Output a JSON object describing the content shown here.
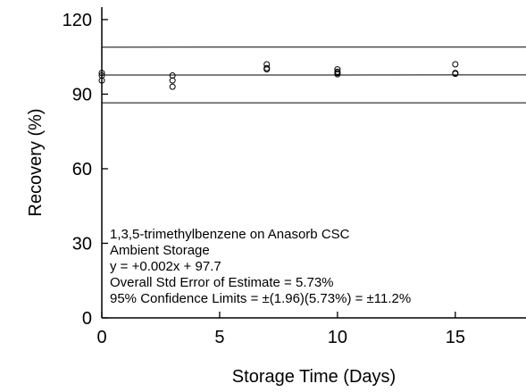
{
  "chart_data": {
    "type": "scatter",
    "xlabel": "Storage Time (Days)",
    "ylabel": "Recovery (%)",
    "xlim": [
      0,
      18
    ],
    "ylim": [
      0,
      125
    ],
    "xticks": [
      0,
      5,
      10,
      15
    ],
    "yticks": [
      0,
      30,
      60,
      90,
      120
    ],
    "xtick_labels": [
      "0",
      "5",
      "10",
      "15"
    ],
    "ytick_labels": [
      "0",
      "30",
      "60",
      "90",
      "120"
    ],
    "grid": false,
    "reference_lines": [
      {
        "label": "upper 95% confidence limit",
        "y_at_x0": 108.9,
        "slope": 0.002
      },
      {
        "label": "regression line",
        "y_at_x0": 97.7,
        "slope": 0.002
      },
      {
        "label": "lower 95% confidence limit",
        "y_at_x0": 86.5,
        "slope": 0.002
      }
    ],
    "series": [
      {
        "marker": "open-circle",
        "points": [
          {
            "x": 0,
            "y": 98.5
          },
          {
            "x": 0,
            "y": 97.5
          },
          {
            "x": 0,
            "y": 95.5
          },
          {
            "x": 3,
            "y": 97.5
          },
          {
            "x": 3,
            "y": 95.5
          },
          {
            "x": 3,
            "y": 93.0
          },
          {
            "x": 7,
            "y": 102.0
          },
          {
            "x": 7,
            "y": 100.5
          },
          {
            "x": 7,
            "y": 100.0
          },
          {
            "x": 10,
            "y": 100.0
          },
          {
            "x": 10,
            "y": 99.0
          },
          {
            "x": 10,
            "y": 98.5
          },
          {
            "x": 10,
            "y": 98.0
          },
          {
            "x": 15,
            "y": 102.0
          },
          {
            "x": 15,
            "y": 98.5
          },
          {
            "x": 15,
            "y": 98.2
          }
        ]
      }
    ],
    "annotation_lines": [
      "1,3,5-trimethylbenzene on Anasorb CSC",
      "Ambient Storage",
      "y = +0.002x + 97.7",
      "Overall Std Error of Estimate = 5.73%",
      "95% Confidence Limits = ±(1.96)(5.73%) = ±11.2%"
    ]
  }
}
